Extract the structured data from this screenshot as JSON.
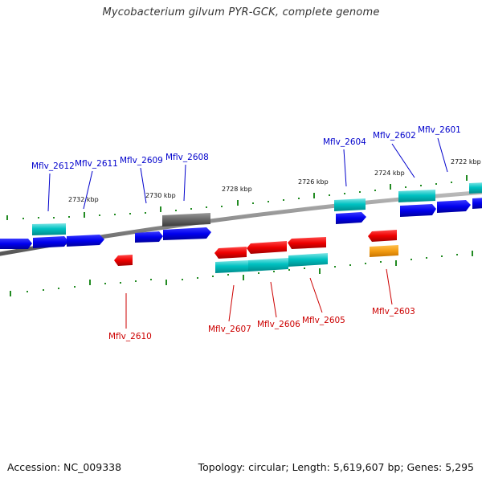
{
  "title": "Mycobacterium gilvum PYR-GCK, complete genome",
  "footer": {
    "accession": "Accession: NC_009338",
    "info": "Topology: circular; Length: 5,619,607 bp; Genes: 5,295"
  },
  "colors": {
    "forward_cds": "#0000ee",
    "reverse_cds": "#ee0000",
    "gene_cyan": "#00bfc4",
    "pseudo_gray": "#666666",
    "orange_feature": "#f39c12",
    "backbone": "#888888",
    "tick": "#228b22",
    "label_forward": "#0000cc",
    "label_reverse": "#cc0000"
  },
  "scale_labels": [
    {
      "key": "2732",
      "text": "2732 kbp"
    },
    {
      "key": "2730",
      "text": "2730 kbp"
    },
    {
      "key": "2728",
      "text": "2728 kbp"
    },
    {
      "key": "2726",
      "text": "2726 kbp"
    },
    {
      "key": "2724",
      "text": "2724 kbp"
    },
    {
      "key": "2722",
      "text": "2722 kbp"
    }
  ],
  "genes_forward": [
    {
      "id": "f2612",
      "name": "Mflv_2612"
    },
    {
      "id": "f2611",
      "name": "Mflv_2611"
    },
    {
      "id": "f2609",
      "name": "Mflv_2609"
    },
    {
      "id": "f2608",
      "name": "Mflv_2608"
    },
    {
      "id": "f2604",
      "name": "Mflv_2604"
    },
    {
      "id": "f2602",
      "name": "Mflv_2602"
    },
    {
      "id": "f2601",
      "name": "Mflv_2601"
    }
  ],
  "genes_reverse": [
    {
      "id": "r2610",
      "name": "Mflv_2610"
    },
    {
      "id": "r2607",
      "name": "Mflv_2607"
    },
    {
      "id": "r2606",
      "name": "Mflv_2606"
    },
    {
      "id": "r2605",
      "name": "Mflv_2605"
    },
    {
      "id": "r2603",
      "name": "Mflv_2603"
    }
  ]
}
